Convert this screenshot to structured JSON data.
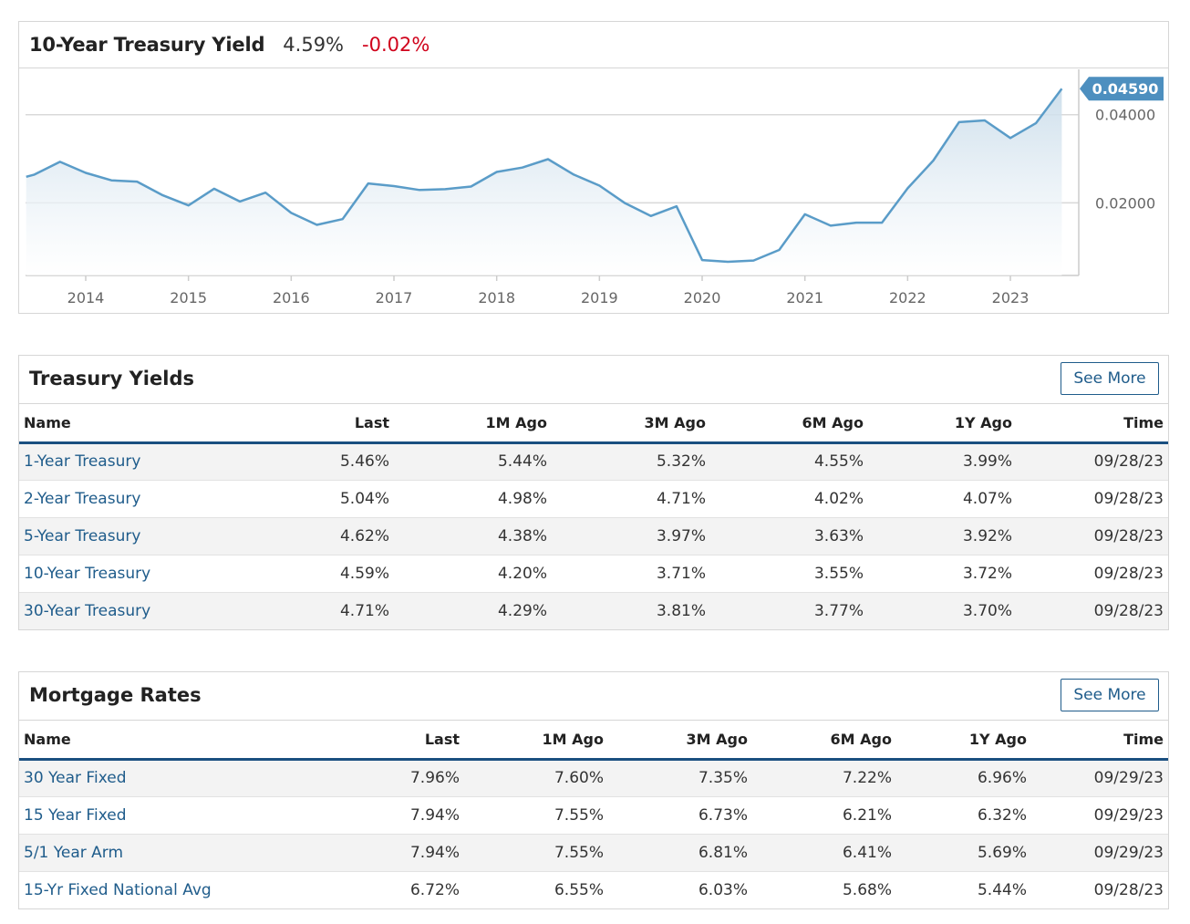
{
  "chart_header": {
    "title": "10-Year Treasury Yield",
    "last": "4.59%",
    "change": "-0.02%"
  },
  "chart_data": {
    "type": "area",
    "title": "10-Year Treasury Yield",
    "x_tick_labels": [
      "2014",
      "2015",
      "2016",
      "2017",
      "2018",
      "2019",
      "2020",
      "2021",
      "2022",
      "2023"
    ],
    "y_tick_labels": [
      "0.02000",
      "0.04000"
    ],
    "ylim": [
      0.0035,
      0.0503
    ],
    "grid": true,
    "current_value_label": "0.04590",
    "series": [
      {
        "x": [
          2013.42,
          2013.5,
          2013.75,
          2014.0,
          2014.25,
          2014.5,
          2014.75,
          2015.0,
          2015.25,
          2015.5,
          2015.75,
          2016.0,
          2016.25,
          2016.5,
          2016.75,
          2017.0,
          2017.25,
          2017.5,
          2017.75,
          2018.0,
          2018.25,
          2018.5,
          2018.75,
          2019.0,
          2019.25,
          2019.5,
          2019.75,
          2020.0,
          2020.25,
          2020.5,
          2020.75,
          2021.0,
          2021.25,
          2021.5,
          2021.75,
          2022.0,
          2022.25,
          2022.5,
          2022.75,
          2023.0,
          2023.25,
          2023.5
        ],
        "y": [
          0.0259,
          0.0264,
          0.0293,
          0.0268,
          0.0251,
          0.0248,
          0.0217,
          0.0194,
          0.0232,
          0.0203,
          0.0223,
          0.0177,
          0.015,
          0.0163,
          0.0244,
          0.0238,
          0.0229,
          0.0231,
          0.0237,
          0.027,
          0.028,
          0.0299,
          0.0264,
          0.0239,
          0.0199,
          0.017,
          0.0192,
          0.007,
          0.0066,
          0.0069,
          0.0093,
          0.0174,
          0.0148,
          0.0155,
          0.0155,
          0.0233,
          0.0296,
          0.0383,
          0.0387,
          0.0347,
          0.0381,
          0.0459
        ]
      }
    ]
  },
  "treasury": {
    "title": "Treasury Yields",
    "see_more": "See More",
    "columns": [
      "Name",
      "Last",
      "1M Ago",
      "3M Ago",
      "6M Ago",
      "1Y Ago",
      "Time"
    ],
    "rows": [
      {
        "name": "1-Year Treasury",
        "last": "5.46%",
        "m1": "5.44%",
        "m3": "5.32%",
        "m6": "4.55%",
        "y1": "3.99%",
        "time": "09/28/23"
      },
      {
        "name": "2-Year Treasury",
        "last": "5.04%",
        "m1": "4.98%",
        "m3": "4.71%",
        "m6": "4.02%",
        "y1": "4.07%",
        "time": "09/28/23"
      },
      {
        "name": "5-Year Treasury",
        "last": "4.62%",
        "m1": "4.38%",
        "m3": "3.97%",
        "m6": "3.63%",
        "y1": "3.92%",
        "time": "09/28/23"
      },
      {
        "name": "10-Year Treasury",
        "last": "4.59%",
        "m1": "4.20%",
        "m3": "3.71%",
        "m6": "3.55%",
        "y1": "3.72%",
        "time": "09/28/23"
      },
      {
        "name": "30-Year Treasury",
        "last": "4.71%",
        "m1": "4.29%",
        "m3": "3.81%",
        "m6": "3.77%",
        "y1": "3.70%",
        "time": "09/28/23"
      }
    ]
  },
  "mortgage": {
    "title": "Mortgage Rates",
    "see_more": "See More",
    "columns": [
      "Name",
      "Last",
      "1M Ago",
      "3M Ago",
      "6M Ago",
      "1Y Ago",
      "Time"
    ],
    "rows": [
      {
        "name": "30 Year Fixed",
        "last": "7.96%",
        "m1": "7.60%",
        "m3": "7.35%",
        "m6": "7.22%",
        "y1": "6.96%",
        "time": "09/29/23"
      },
      {
        "name": "15 Year Fixed",
        "last": "7.94%",
        "m1": "7.55%",
        "m3": "6.73%",
        "m6": "6.21%",
        "y1": "6.32%",
        "time": "09/29/23"
      },
      {
        "name": "5/1 Year Arm",
        "last": "7.94%",
        "m1": "7.55%",
        "m3": "6.81%",
        "m6": "6.41%",
        "y1": "5.69%",
        "time": "09/29/23"
      },
      {
        "name": "15-Yr Fixed National Avg",
        "last": "6.72%",
        "m1": "6.55%",
        "m3": "6.03%",
        "m6": "5.68%",
        "y1": "5.44%",
        "time": "09/28/23"
      }
    ]
  },
  "colors": {
    "accent": "#1f5c8b",
    "line": "#5a9cc8",
    "negative": "#d0021b",
    "header_rule": "#1a4f80"
  }
}
